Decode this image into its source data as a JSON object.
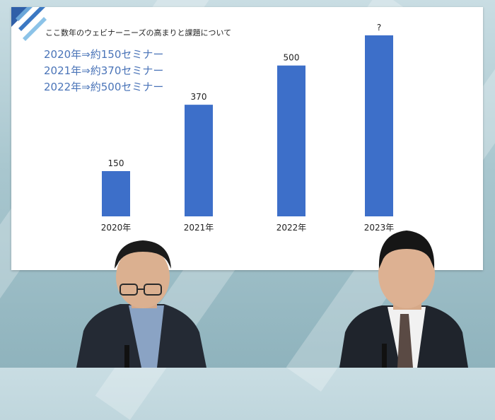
{
  "slide": {
    "title": "ここ数年のウェビナーニーズの高まりと課題について",
    "stats": [
      "2020年⇒約150セミナー",
      "2021年⇒約370セミナー",
      "2022年⇒約500セミナー"
    ]
  },
  "chart_data": {
    "type": "bar",
    "categories": [
      "2020年",
      "2021年",
      "2022年",
      "2023年"
    ],
    "values": [
      150,
      370,
      500,
      null
    ],
    "data_labels": [
      "150",
      "370",
      "500",
      "?"
    ],
    "ylim": [
      0,
      600
    ],
    "title": "",
    "xlabel": "",
    "ylabel": "",
    "grid": false,
    "bar_color": "#3d6fc9"
  },
  "colors": {
    "accent_blue": "#3d6fc9",
    "stat_text": "#4a74b8"
  }
}
